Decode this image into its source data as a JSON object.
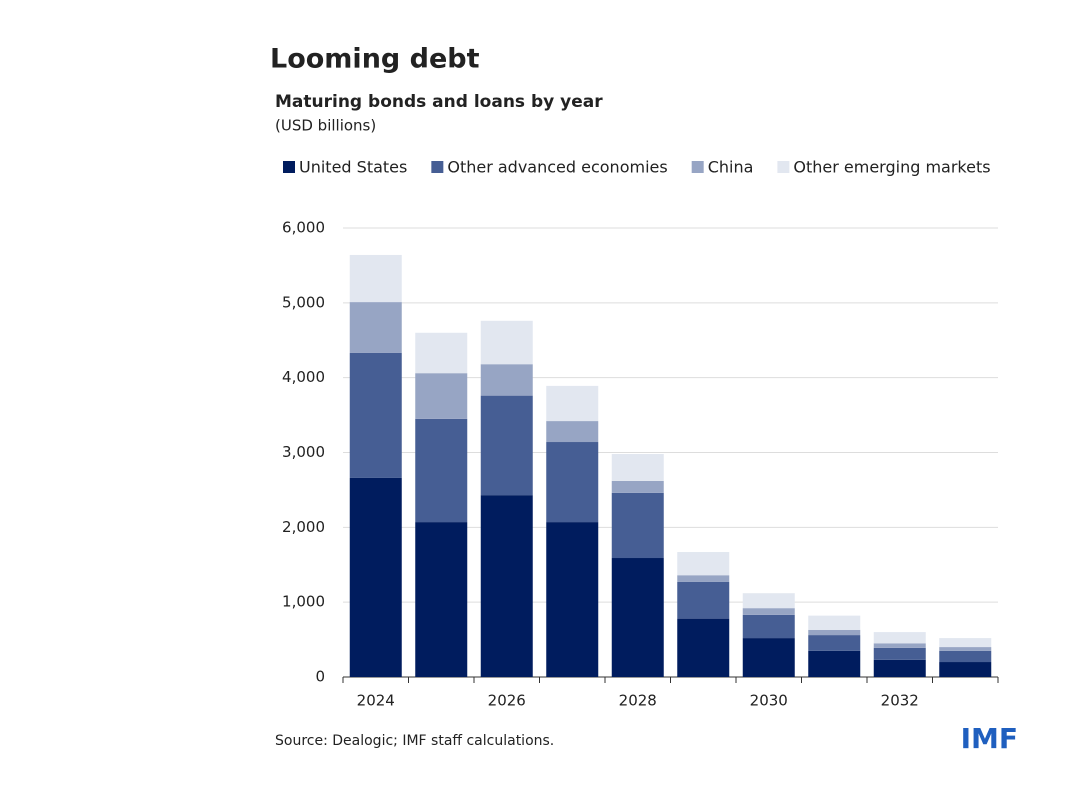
{
  "chart_data": {
    "type": "stacked_bar",
    "title": "Looming debt",
    "subtitle": "Maturing bonds and loans by year",
    "unit_label": "(USD billions)",
    "source": "Source: Dealogic; IMF staff calculations.",
    "logo": "IMF",
    "categories": [
      "2024",
      null,
      "2026",
      null,
      "2028",
      null,
      "2030",
      null,
      "2032",
      null
    ],
    "series": [
      {
        "name": "United States",
        "color": "#001c5e",
        "values": [
          2660,
          2070,
          2430,
          2070,
          1590,
          780,
          520,
          350,
          230,
          200
        ]
      },
      {
        "name": "Other advanced economies",
        "color": "#465e94",
        "values": [
          1670,
          1380,
          1330,
          1070,
          870,
          490,
          310,
          210,
          160,
          150
        ]
      },
      {
        "name": "China",
        "color": "#97a5c4",
        "values": [
          680,
          610,
          420,
          280,
          160,
          90,
          90,
          70,
          60,
          50
        ]
      },
      {
        "name": "Other emerging markets",
        "color": "#e2e7f0",
        "values": [
          630,
          540,
          580,
          470,
          360,
          310,
          200,
          190,
          150,
          120
        ]
      }
    ],
    "ylim": [
      0,
      6000
    ],
    "yticks": [
      0,
      {
        "value": 1000,
        "label": "1,000"
      },
      {
        "value": 2000,
        "label": "2,000"
      },
      {
        "value": 3000,
        "label": "3,000"
      },
      {
        "value": 4000,
        "label": "4,000"
      },
      {
        "value": 5000,
        "label": "5,000"
      },
      {
        "value": 6000,
        "label": "6,000"
      }
    ],
    "grid": true,
    "legend": "top"
  }
}
